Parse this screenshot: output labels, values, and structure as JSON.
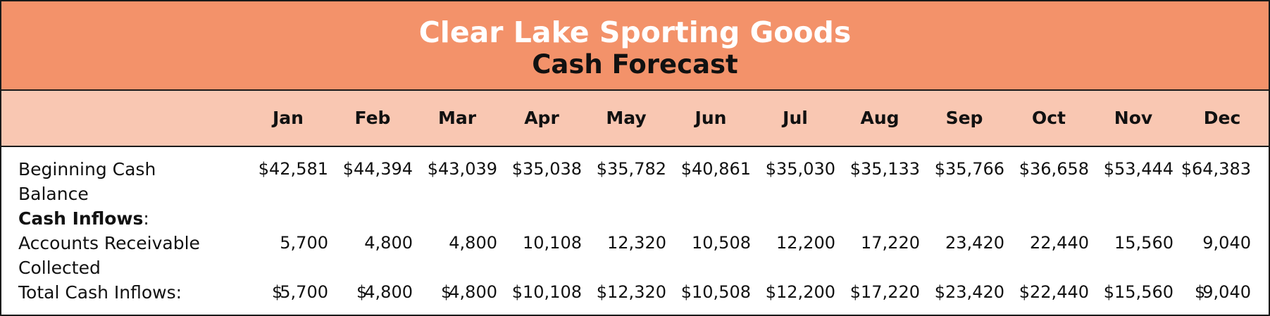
{
  "report": {
    "company": "Clear Lake Sporting Goods",
    "title": "Cash Forecast"
  },
  "months": [
    "Jan",
    "Feb",
    "Mar",
    "Apr",
    "May",
    "Jun",
    "Jul",
    "Aug",
    "Sep",
    "Oct",
    "Nov",
    "Dec"
  ],
  "rows": {
    "beginning_cash": {
      "label_line1": "Beginning Cash",
      "label_line2": "Balance",
      "values": [
        "$42,581",
        "$44,394",
        "$43,039",
        "$35,038",
        "$35,782",
        "$40,861",
        "$35,030",
        "$35,133",
        "$35,766",
        "$36,658",
        "$53,444",
        "$64,383"
      ]
    },
    "cash_inflows_header": {
      "label": "Cash Inflows",
      "suffix": ":"
    },
    "accounts_receivable": {
      "label_line1": "Accounts Receivable",
      "label_line2": "Collected",
      "values": [
        "5,700",
        "4,800",
        "4,800",
        "10,108",
        "12,320",
        "10,508",
        "12,200",
        "17,220",
        "23,420",
        "22,440",
        "15,560",
        "9,040"
      ]
    },
    "total_cash_inflows": {
      "label": "Total Cash Inflows:",
      "values": [
        {
          "symbol": "$",
          "amount": "5,700"
        },
        {
          "symbol": "$",
          "amount": "4,800"
        },
        {
          "symbol": "$",
          "amount": "4,800"
        },
        {
          "symbol": "",
          "amount": "$10,108"
        },
        {
          "symbol": "",
          "amount": "$12,320"
        },
        {
          "symbol": "",
          "amount": "$10,508"
        },
        {
          "symbol": "",
          "amount": "$12,200"
        },
        {
          "symbol": "",
          "amount": "$17,220"
        },
        {
          "symbol": "",
          "amount": "$23,420"
        },
        {
          "symbol": "",
          "amount": "$22,440"
        },
        {
          "symbol": "",
          "amount": "$15,560"
        },
        {
          "symbol": "$",
          "amount": "9,040"
        }
      ]
    }
  },
  "colors": {
    "title_band": "#f3926a",
    "header_band": "#f9c7b2",
    "company_text": "#ffffff",
    "border": "#1a1a1a"
  }
}
